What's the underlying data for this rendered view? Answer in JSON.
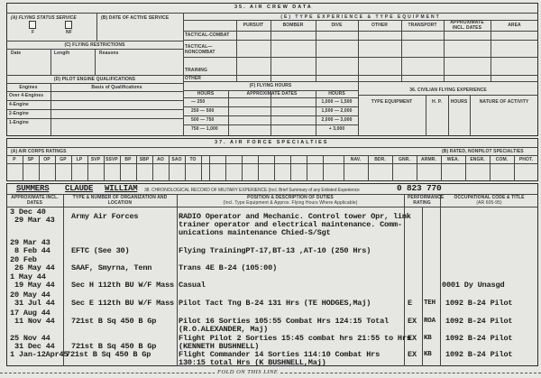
{
  "section35": {
    "title": "35. AIR CREW DATA",
    "a": {
      "title": "(A) FLYING STATUS SERVICE",
      "f": "F",
      "nf": "NF"
    },
    "b": {
      "title": "(B) DATE OF ACTIVE SERVICE"
    },
    "c": {
      "title": "(C) FLYING RESTRICTIONS",
      "cols": [
        "Date",
        "Length",
        "Reasons"
      ]
    },
    "d": {
      "title": "(D) PILOT ENGINE QUALIFICATIONS",
      "cols": [
        "Engines",
        "Basis of Qualifications"
      ],
      "rows": [
        "Over 4-Engines",
        "4-Engine",
        "2-Engine",
        "1-Engine"
      ]
    },
    "e": {
      "title": "(E) TYPE EXPERIENCE & TYPE EQUIPMENT",
      "cols": [
        "PURSUIT",
        "BOMBER",
        "DIVE",
        "OTHER",
        "TRANSPORT",
        "APPROXIMATE INCL. DATES",
        "AREA"
      ],
      "rows": [
        "TACTICAL-COMBAT",
        "TACTICAL— NONCOMBAT",
        "TRAINING",
        "OTHER"
      ]
    },
    "f": {
      "title": "(F) FLYING HOURS",
      "cols": [
        "HOURS",
        "APPROXIMATE DATES",
        "HOURS"
      ],
      "left": [
        "— 250",
        "250 — 500",
        "500 — 750",
        "750 — 1,000"
      ],
      "right": [
        "1,000 — 1,500",
        "1,500 — 2,000",
        "2,000 — 3,000",
        "+ 3,000"
      ]
    }
  },
  "section36": {
    "title": "36. CIVILIAN FLYING EXPERIENCE",
    "cols": [
      "TYPE EQUIPMENT",
      "H. P.",
      "HOURS",
      "NATURE OF ACTIVITY"
    ]
  },
  "section37": {
    "title": "37. AIR FORCE SPECIALTIES",
    "a_title": "(A) AIR CORPS RATINGS",
    "b_title": "(B) RATED, NONPILOT SPECIALTIES",
    "ratings": [
      "P",
      "SP",
      "OP",
      "GP",
      "LP",
      "SVP",
      "SSVP",
      "BP",
      "SBP",
      "AO",
      "SAO",
      "TO"
    ],
    "nonpilot": [
      "NAV.",
      "BDR.",
      "GNR.",
      "ARMR.",
      "WEA.",
      "ENGR.",
      "COM.",
      "PHOT."
    ]
  },
  "section38": {
    "last_name": "SUMMERS",
    "first_name": "CLAUDE",
    "middle_name": "WILLIAM",
    "title": "38. CHRONOLOGICAL RECORD OF MILITARY EXPERIENCE (Incl. Brief Summary of any Enlisted Experience",
    "serial": "0 823 770",
    "headers": {
      "dates": "APPROXIMATE INCL. DATES",
      "org": "TYPE & NUMBER OF ORGANIZATION AND LOCATION",
      "duties": "POSITION & DESCRIPTION OF DUTIES",
      "duties_sub": "(Incl. Type Equipment & Approx. Flying Hours Where Applicable)",
      "perf": "PERFORMANCE RATING",
      "occ": "OCCUPATIONAL CODE & TITLE",
      "occ_sub": "(AR 605-95)"
    },
    "entries": [
      {
        "dates": [
          "3 Dec 40",
          "29 Mar 43"
        ],
        "org": "Army Air Forces",
        "duties": [
          "RADIO Operator and Mechanic. Control tower Opr, link",
          "trainer operator and electrical maintenance. Comm-",
          "unications maintenance Chied-S/Sgt"
        ],
        "rating": "",
        "rater": "",
        "code": ""
      },
      {
        "dates": [
          "29 Mar 43",
          "8 Feb 44"
        ],
        "org": "EFTC (See 30)",
        "duties": [
          "Flying TrainingPT-17,BT-13 ,AT-10 (250 Hrs)"
        ],
        "rating": "",
        "rater": "",
        "code": ""
      },
      {
        "dates": [
          "20 Feb",
          "26 May 44"
        ],
        "org": "SAAF, Smyrna, Tenn",
        "duties": [
          "Trans 4E B-24  (105:00)"
        ],
        "rating": "",
        "rater": "",
        "code": ""
      },
      {
        "dates": [
          "1 May 44",
          "19 May 44"
        ],
        "org": "Sec H 112th BU W/F Mass",
        "duties": [
          "Casual"
        ],
        "rating": "",
        "rater": "",
        "code": "0001 Dy Unasgd"
      },
      {
        "dates": [
          "20 May 44",
          "31 Jul 44"
        ],
        "org": "Sec E 112th BU W/F Mass",
        "duties": [
          "Pilot Tact Tng B-24 131 Hrs (TE HODGES,Maj)"
        ],
        "rating": "E",
        "rater": "TEH",
        "code": "1092 B-24 Pilot"
      },
      {
        "dates": [
          "17 Aug 44",
          "11 Nov 44"
        ],
        "org": "721st B Sq 450 B Gp",
        "duties": [
          "Pilot 16 Sorties 105:55 Combat Hrs 124:15 Total",
          "(R.O.ALEXANDER, Maj)"
        ],
        "rating": "EX",
        "rater": "ROA",
        "code": "1092 B-24 Pilot"
      },
      {
        "dates": [
          "25 Nov 44",
          "31 Dec 44"
        ],
        "org": "721st B Sq 450 B Gp",
        "duties": [
          "Flight Pilot 2 Sorties 15:45 combat hrs 21:55 to Hrs",
          "(KENNETH BUSHNELL)"
        ],
        "rating": "EX",
        "rater": "KB",
        "code": "1092 B-24 Pilot"
      },
      {
        "dates": [
          "1 Jan-12Apr45"
        ],
        "org": "721st B Sq 450 B Gp",
        "duties": [
          "Flight Commander 14 Sorties 114:10 Combat Hrs",
          "130:15 total Hrs (K BUSHNELL,Maj)"
        ],
        "rating": "EX",
        "rater": "KB",
        "code": "1092 B-24 Pilot"
      }
    ]
  },
  "fold_line": "FOLD ON THIS LINE"
}
